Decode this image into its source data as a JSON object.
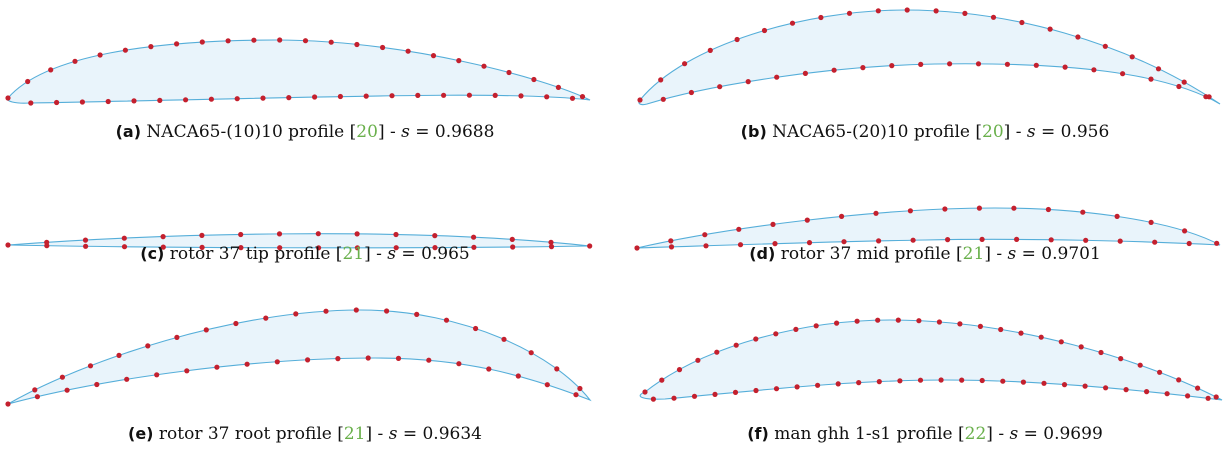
{
  "panels": [
    {
      "label": "(a)",
      "title": "NACA65-(10)10 profile",
      "ref": "20",
      "s_label": "s",
      "s_value": "= 0.9688"
    },
    {
      "label": "(b)",
      "title": "NACA65-(20)10 profile",
      "ref": "20",
      "s_label": "s",
      "s_value": "= 0.956"
    },
    {
      "label": "(c)",
      "title": "rotor 37 tip profile",
      "ref": "21",
      "s_label": "s",
      "s_value": "= 0.965"
    },
    {
      "label": "(d)",
      "title": "rotor 37 mid profile",
      "ref": "21",
      "s_label": "s",
      "s_value": "= 0.9701"
    },
    {
      "label": "(e)",
      "title": "rotor 37 root profile",
      "ref": "21",
      "s_label": "s",
      "s_value": "= 0.9634"
    },
    {
      "label": "(f)",
      "title": "man ghh 1-s1 profile",
      "ref": "22",
      "s_label": "s",
      "s_value": "= 0.9699"
    }
  ],
  "colors": {
    "fill": "#e9f4fb",
    "outline": "#55aed9",
    "points": "#c4202e",
    "reference": "#6ab04c"
  }
}
